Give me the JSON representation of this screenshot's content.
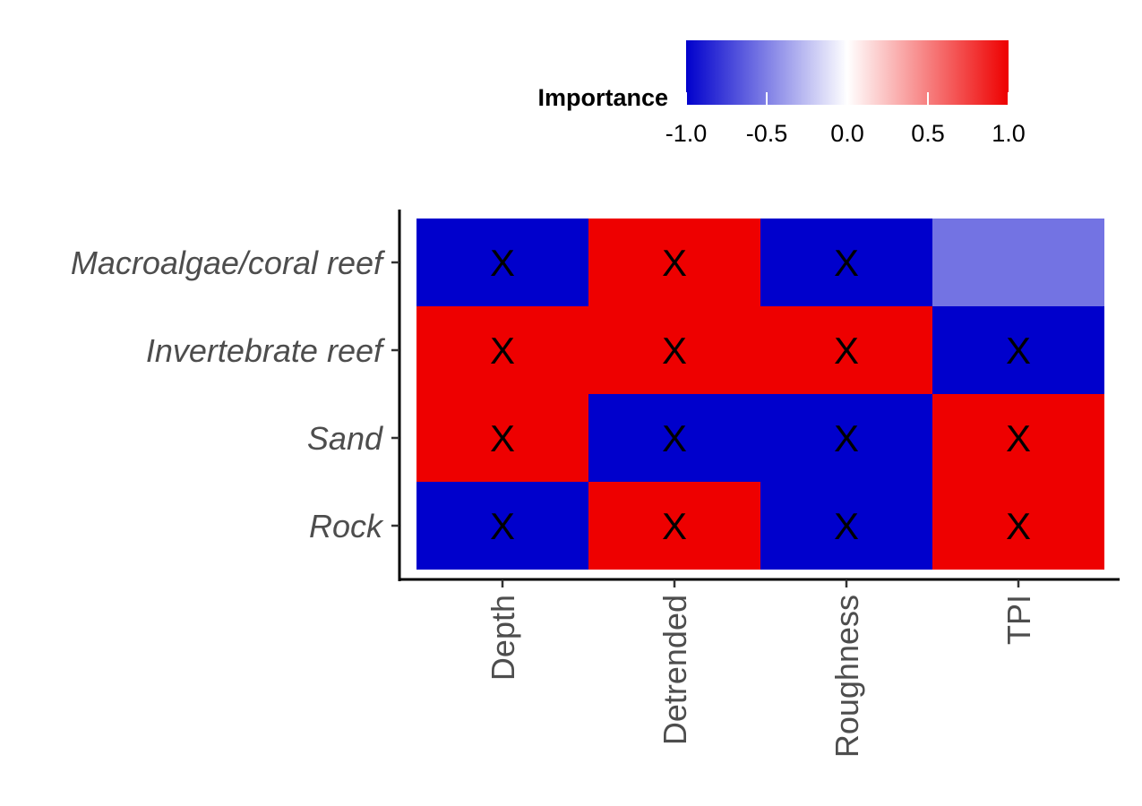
{
  "chart_data": {
    "type": "heatmap",
    "title": "",
    "xlabel": "",
    "ylabel": "",
    "x_categories": [
      "Depth",
      "Detrended",
      "Roughness",
      "TPI"
    ],
    "y_categories": [
      "Macroalgae/coral reef",
      "Invertebrate reef",
      "Sand",
      "Rock"
    ],
    "values": [
      [
        -1,
        1,
        -1,
        -0.55
      ],
      [
        1,
        1,
        1,
        -1
      ],
      [
        1,
        -1,
        -1,
        1
      ],
      [
        -1,
        1,
        -1,
        1
      ]
    ],
    "marked": [
      [
        true,
        true,
        true,
        false
      ],
      [
        true,
        true,
        true,
        true
      ],
      [
        true,
        true,
        true,
        true
      ],
      [
        true,
        true,
        true,
        true
      ]
    ],
    "marker_text": "X",
    "legend": {
      "title": "Importance",
      "placement": "top",
      "range": [
        -1,
        1
      ],
      "ticks": [
        -1,
        -0.5,
        0,
        0.5,
        1
      ],
      "tick_labels": [
        "-1.0",
        "-0.5",
        "0.0",
        "0.5",
        "1.0"
      ],
      "colors": {
        "low": "#0000CC",
        "mid": "#FFFFFF",
        "high": "#EE0000"
      }
    },
    "grid": false
  }
}
